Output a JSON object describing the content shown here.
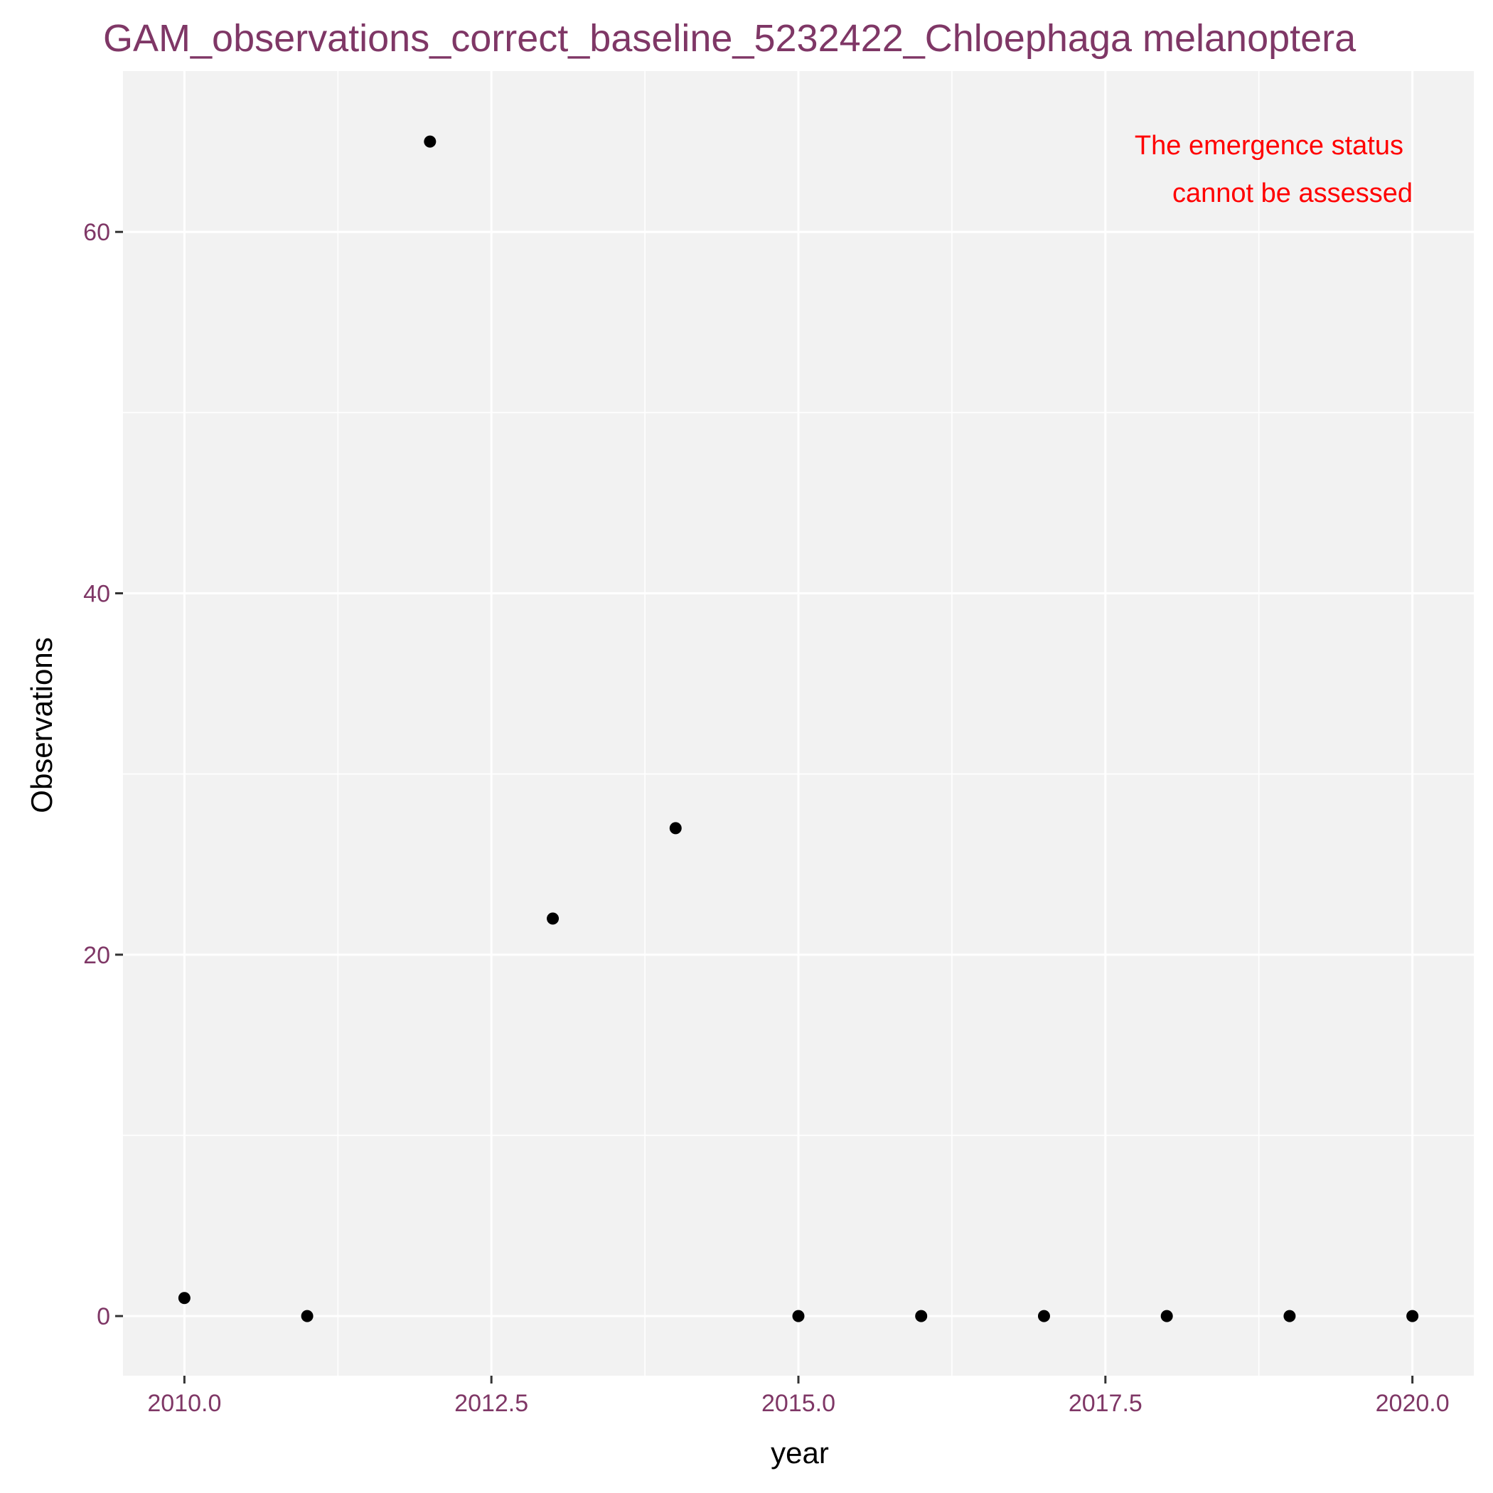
{
  "chart_data": {
    "type": "scatter",
    "title": "GAM_observations_correct_baseline_5232422_Chloephaga melanoptera",
    "xlabel": "year",
    "ylabel": "Observations",
    "xlim": [
      2009.5,
      2020.5
    ],
    "ylim": [
      -3.3,
      68.9
    ],
    "x_ticks": [
      2010.0,
      2012.5,
      2015.0,
      2017.5,
      2020.0
    ],
    "x_tick_labels": [
      "2010.0",
      "2012.5",
      "2015.0",
      "2017.5",
      "2020.0"
    ],
    "x_minor_ticks": [
      2011.25,
      2013.75,
      2016.25,
      2018.75
    ],
    "y_ticks": [
      0,
      20,
      40,
      60
    ],
    "y_tick_labels": [
      "0",
      "20",
      "40",
      "60"
    ],
    "y_minor_ticks": [
      10,
      30,
      50
    ],
    "grid": true,
    "points": [
      {
        "x": 2010,
        "y": 1
      },
      {
        "x": 2011,
        "y": 0
      },
      {
        "x": 2012,
        "y": 65
      },
      {
        "x": 2013,
        "y": 22
      },
      {
        "x": 2014,
        "y": 27
      },
      {
        "x": 2015,
        "y": 0
      },
      {
        "x": 2016,
        "y": 0
      },
      {
        "x": 2017,
        "y": 0
      },
      {
        "x": 2018,
        "y": 0
      },
      {
        "x": 2019,
        "y": 0
      },
      {
        "x": 2020,
        "y": 0
      }
    ],
    "annotation": {
      "lines": [
        "The emergence status",
        "cannot be assessed"
      ],
      "color": "#ff0000"
    },
    "colors": {
      "panel_background": "#f2f2f2",
      "grid": "#ffffff",
      "title": "#7f3766",
      "tick_labels": "#7f3766",
      "points": "#000000",
      "axis_title": "#000000"
    }
  }
}
